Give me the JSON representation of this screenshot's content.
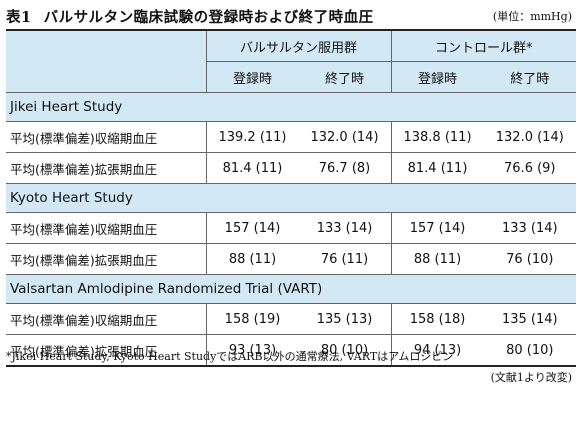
{
  "caption": {
    "number": "表1",
    "text": "バルサルタン臨床試験の登録時および終了時血圧"
  },
  "unit": "(単位：mmHg)",
  "header": {
    "groups": [
      "バルサルタン服用群",
      "コントロール群*"
    ],
    "subcolumns": [
      "登録時",
      "終了時",
      "登録時",
      "終了時"
    ]
  },
  "sections": [
    {
      "title": "Jikei Heart Study",
      "rows": [
        {
          "label": "平均(標準偏差)収縮期血圧",
          "values": [
            "139.2 (11)",
            "132.0 (14)",
            "138.8 (11)",
            "132.0 (14)"
          ]
        },
        {
          "label": "平均(標準偏差)拡張期血圧",
          "values": [
            "81.4 (11)",
            "76.7 (8)",
            "81.4 (11)",
            "76.6 (9)"
          ]
        }
      ]
    },
    {
      "title": "Kyoto Heart Study",
      "rows": [
        {
          "label": "平均(標準偏差)収縮期血圧",
          "values": [
            "157 (14)",
            "133 (14)",
            "157 (14)",
            "133 (14)"
          ]
        },
        {
          "label": "平均(標準偏差)拡張期血圧",
          "values": [
            "88 (11)",
            "76 (11)",
            "88 (11)",
            "76 (10)"
          ]
        }
      ]
    },
    {
      "title": "Valsartan Amlodipine Randomized Trial (VART)",
      "rows": [
        {
          "label": "平均(標準偏差)収縮期血圧",
          "values": [
            "158 (19)",
            "135 (13)",
            "158 (18)",
            "135 (14)"
          ]
        },
        {
          "label": "平均(標準偏差)拡張期血圧",
          "values": [
            "93 (13)",
            "80 (10)",
            "94 (13)",
            "80 (10)"
          ]
        }
      ]
    }
  ],
  "footnote": "*Jikei Heart Study, Kyoto Heart StudyではARB以外の通常療法, VARTはアムロジピン",
  "source": "(文献1より改変)"
}
